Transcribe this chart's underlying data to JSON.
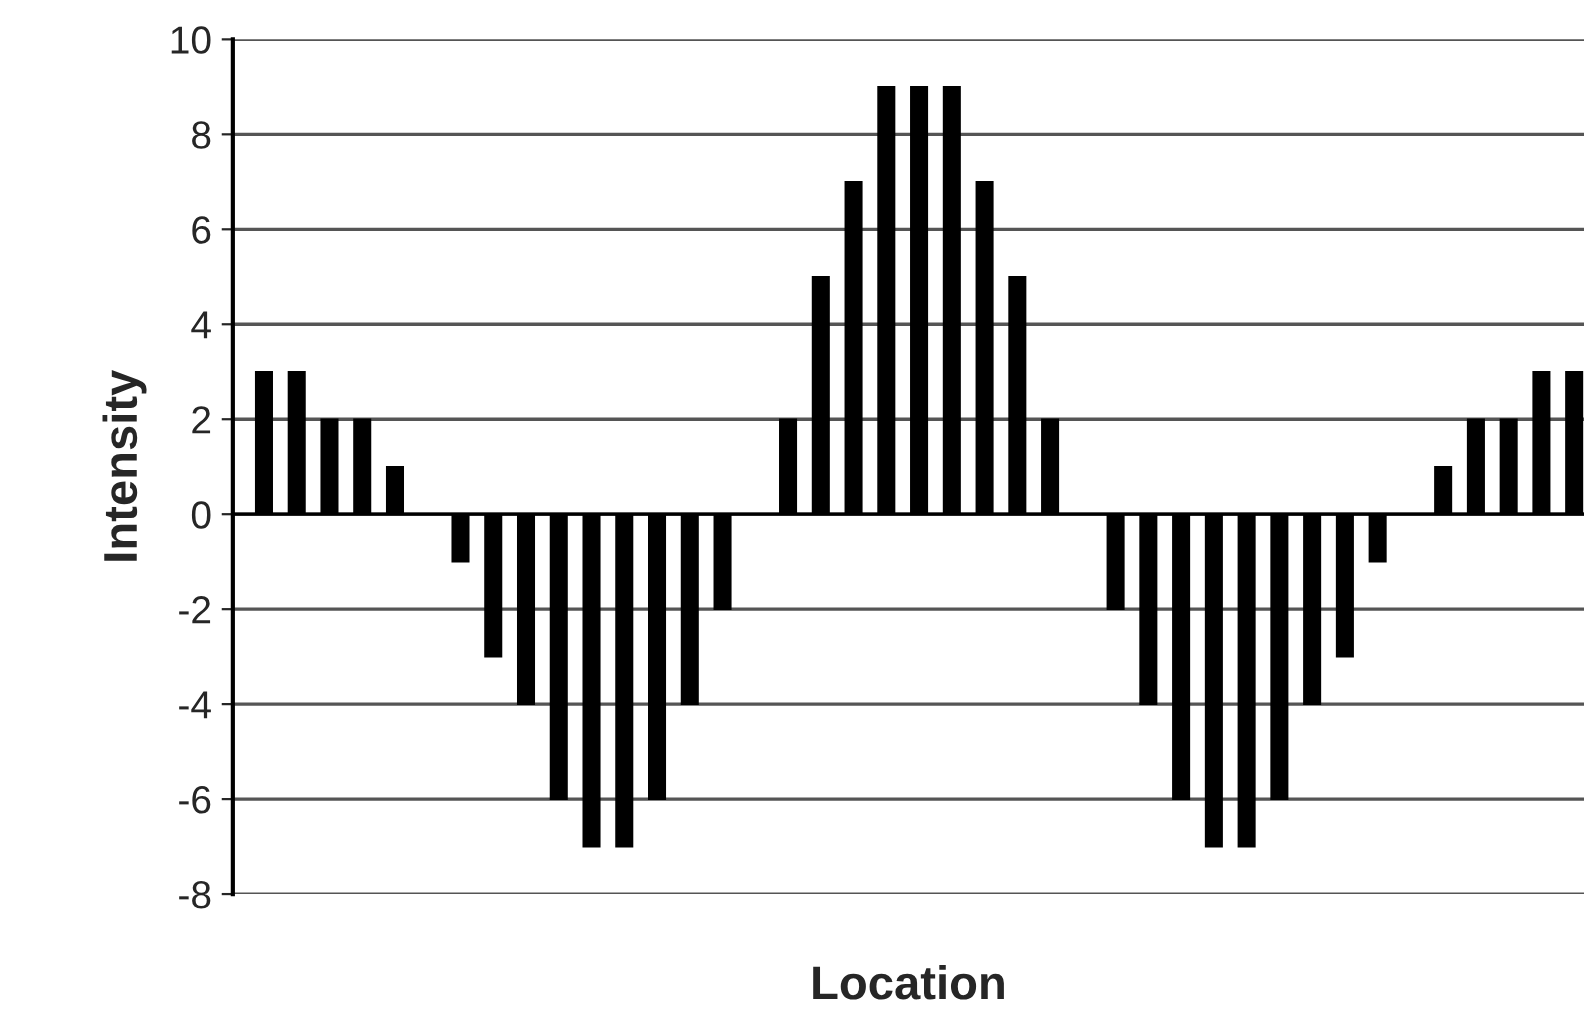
{
  "chart_data": {
    "type": "bar",
    "xlabel": "Location",
    "ylabel": "Intensity",
    "categories": [
      null,
      null,
      null,
      null,
      null,
      null,
      null,
      null,
      null,
      null,
      null,
      null,
      null,
      null,
      null,
      null,
      null,
      null,
      null,
      null,
      null,
      null,
      null,
      null,
      null,
      null,
      null,
      null,
      null,
      null,
      null,
      null,
      null,
      null,
      null,
      null,
      null,
      null,
      null,
      null,
      null
    ],
    "values": [
      3,
      3,
      2,
      2,
      1,
      0,
      -1,
      -3,
      -4,
      -6,
      -7,
      -7,
      -6,
      -4,
      -2,
      0,
      2,
      5,
      7,
      9,
      9,
      9,
      7,
      5,
      2,
      0,
      -2,
      -4,
      -6,
      -7,
      -7,
      -6,
      -4,
      -3,
      -1,
      0,
      1,
      2,
      2,
      3,
      3
    ],
    "color": "#000000",
    "ylim": [
      -8,
      10
    ],
    "yticks": [
      -8,
      -6,
      -4,
      -2,
      0,
      2,
      4,
      6,
      8,
      10
    ],
    "grid": "y"
  }
}
